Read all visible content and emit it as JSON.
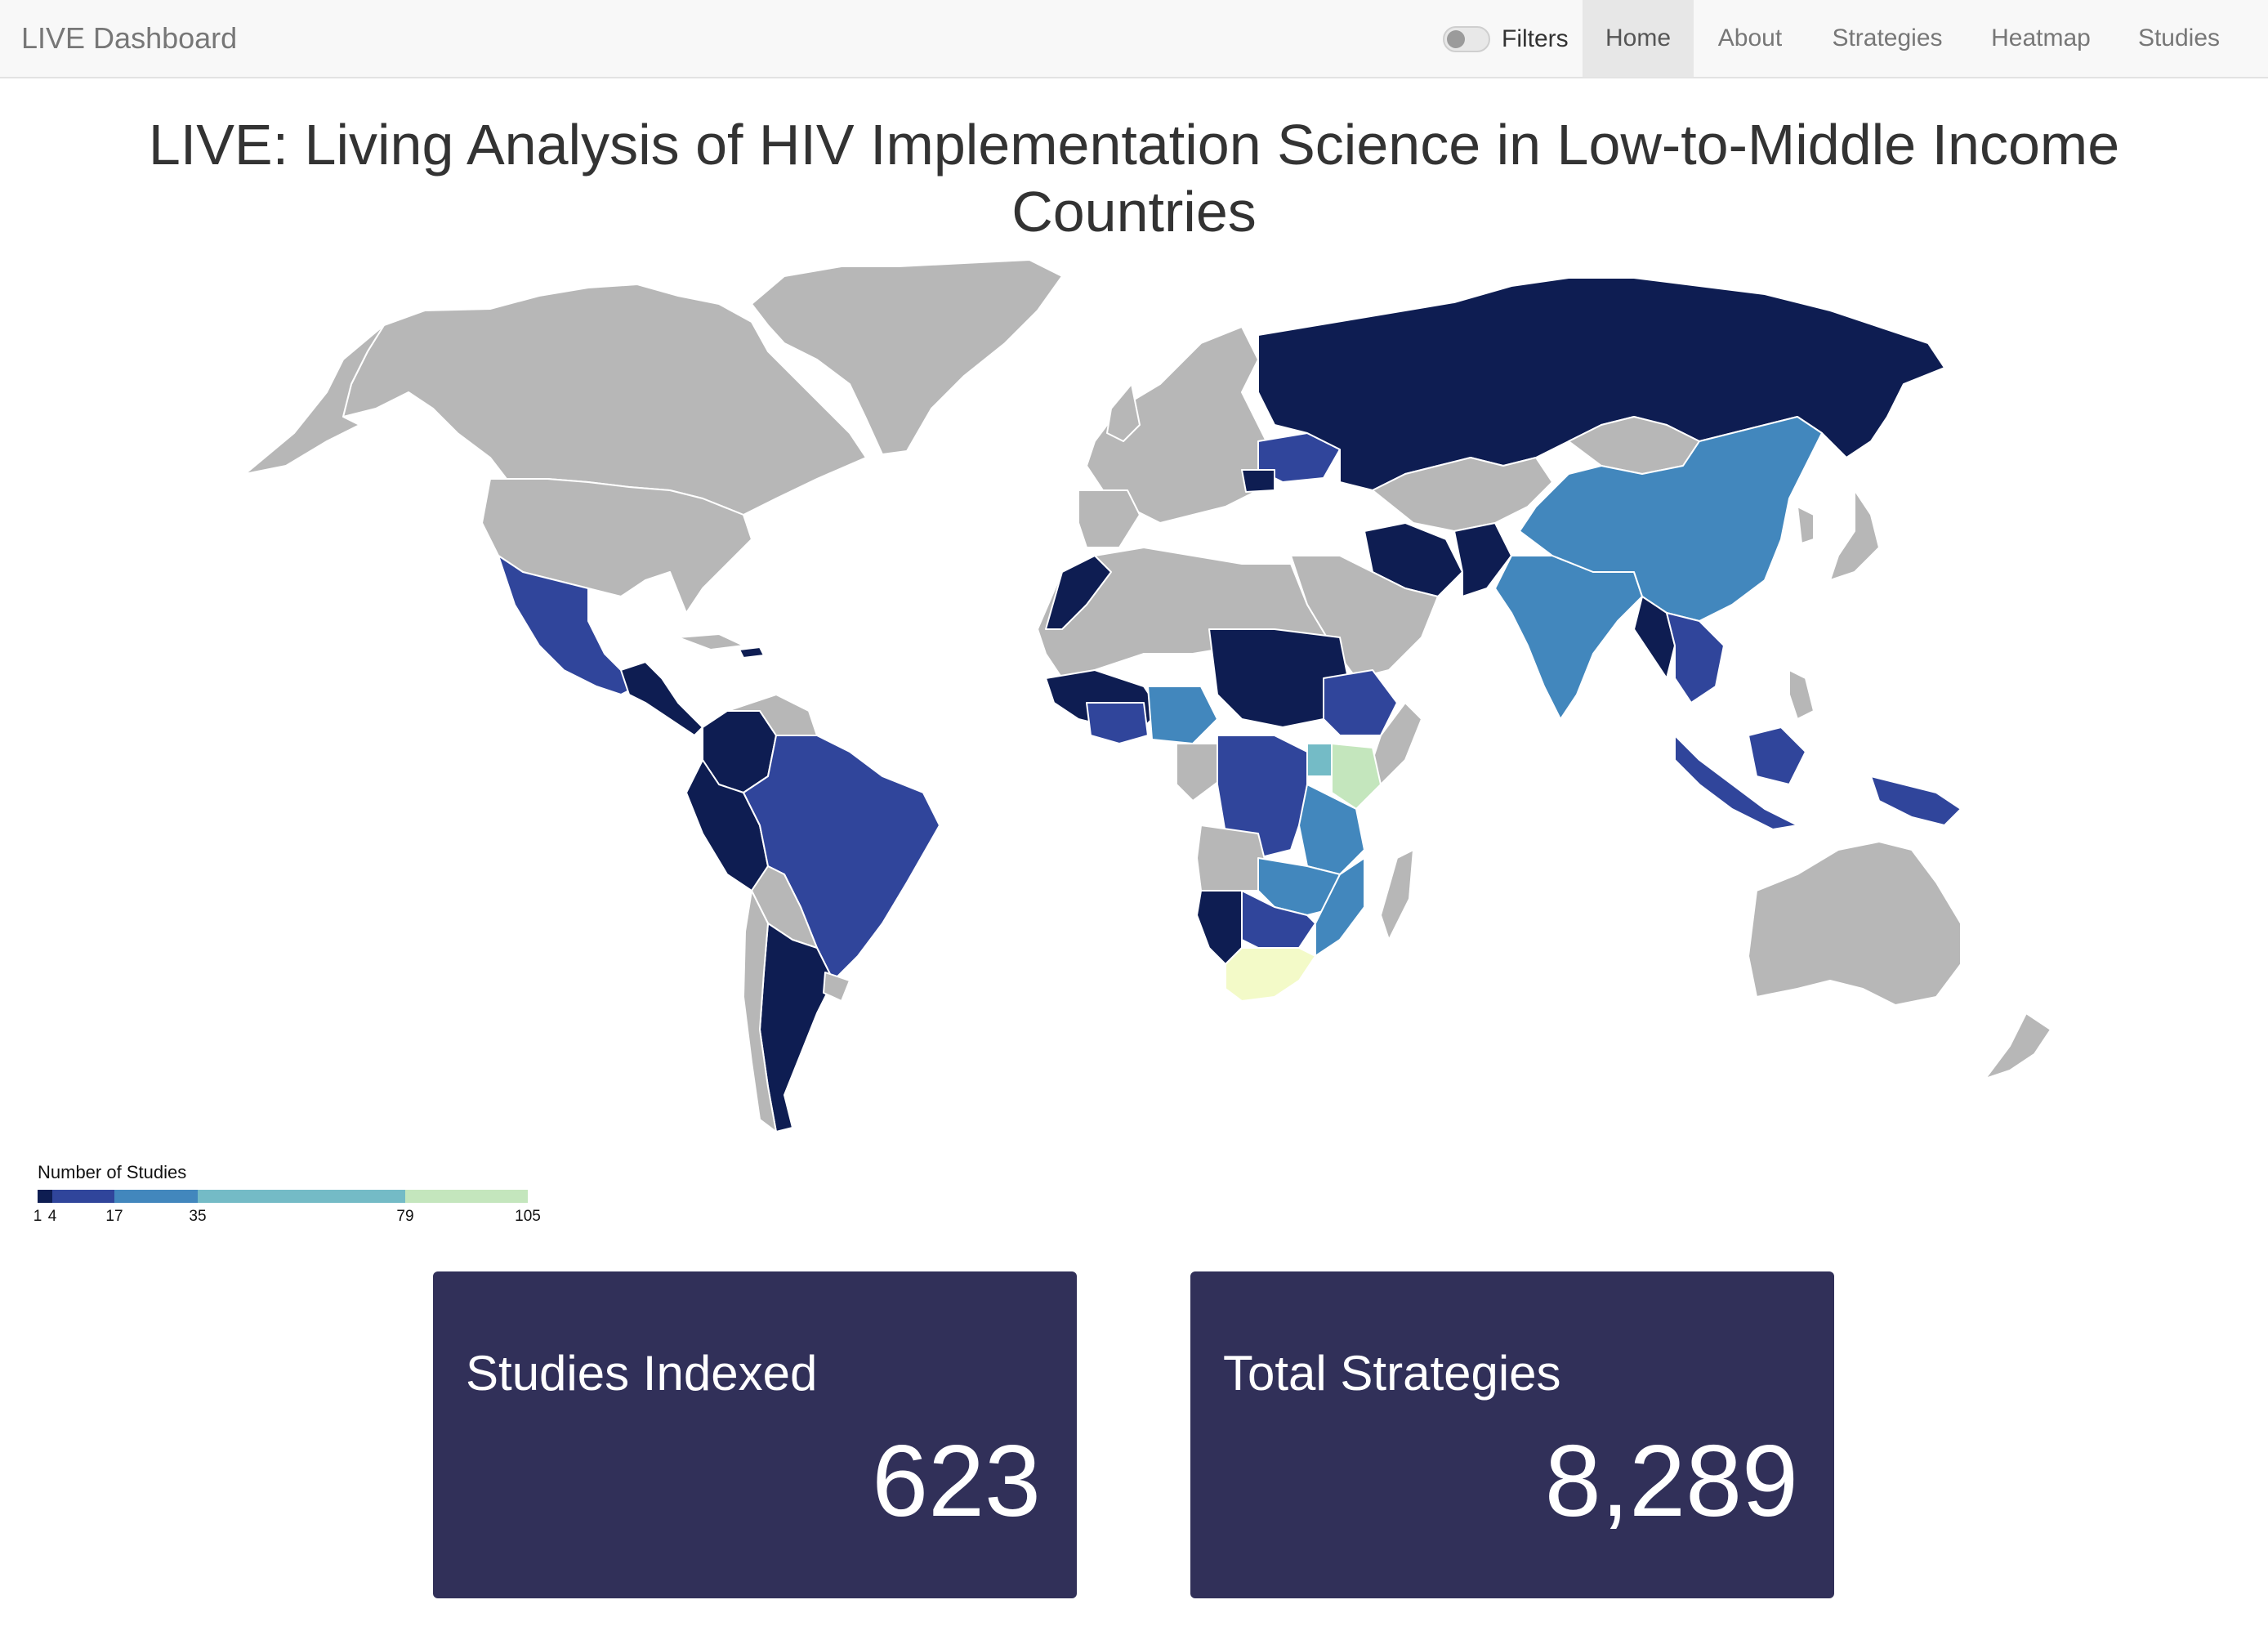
{
  "app": {
    "brand": "LIVE Dashboard"
  },
  "filters": {
    "label": "Filters",
    "enabled": false
  },
  "nav": [
    {
      "label": "Home",
      "active": true
    },
    {
      "label": "About",
      "active": false
    },
    {
      "label": "Strategies",
      "active": false
    },
    {
      "label": "Heatmap",
      "active": false
    },
    {
      "label": "Studies",
      "active": false
    }
  ],
  "page": {
    "title": "LIVE: Living Analysis of HIV Implementation Science in Low-to-Middle Income Countries"
  },
  "legend": {
    "title": "Number of Studies",
    "ticks": [
      "1",
      "4",
      "17",
      "35",
      "79",
      "105"
    ],
    "colors": [
      "#0e1d52",
      "#30459b",
      "#4287bd",
      "#74bbc6",
      "#c4e6bd"
    ]
  },
  "map_colors": {
    "no_data": "#b7b7b7",
    "bin1": "#0e1d52",
    "bin2": "#30459b",
    "bin3": "#4287bd",
    "bin4": "#74bbc6",
    "bin5": "#c4e6bd",
    "top": "#f3fac8"
  },
  "stats": [
    {
      "label": "Studies Indexed",
      "value": "623"
    },
    {
      "label": "Total Strategies",
      "value": "8,289"
    }
  ]
}
